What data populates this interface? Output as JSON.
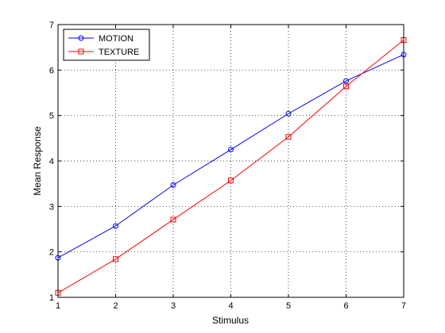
{
  "chart_data": {
    "type": "line",
    "title": "",
    "xlabel": "Stimulus",
    "ylabel": "Mean Response",
    "xlim": [
      1,
      7
    ],
    "ylim": [
      1,
      7
    ],
    "xticks": [
      1,
      2,
      3,
      4,
      5,
      6,
      7
    ],
    "yticks": [
      1,
      2,
      3,
      4,
      5,
      6,
      7
    ],
    "grid": true,
    "legend_position": "top-left",
    "x": [
      1,
      2,
      3,
      4,
      5,
      6,
      7
    ],
    "series": [
      {
        "name": "MOTION",
        "values": [
          1.87,
          2.57,
          3.47,
          4.25,
          5.04,
          5.76,
          6.34
        ],
        "color": "#0000ff",
        "marker": "circle"
      },
      {
        "name": "TEXTURE",
        "values": [
          1.1,
          1.84,
          2.71,
          3.57,
          4.53,
          5.64,
          6.66
        ],
        "color": "#ff0000",
        "marker": "square"
      }
    ]
  }
}
